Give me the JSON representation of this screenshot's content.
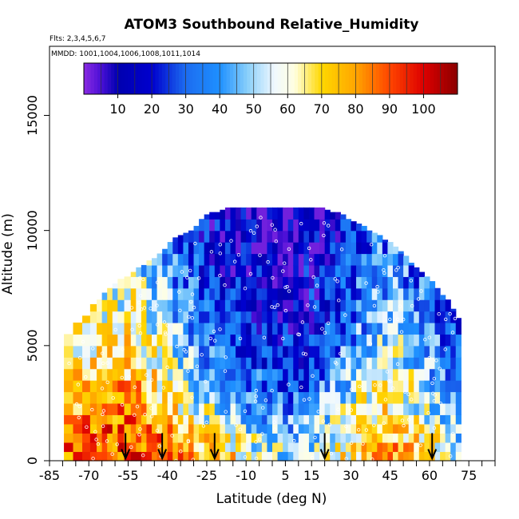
{
  "chart_data": {
    "type": "heatmap",
    "title": "ATOM3 Southbound Relative_Humidity",
    "flights_label": "Flts: 2,3,4,5,6,7",
    "dates_label": "MMDD: 1001,1004,1006,1008,1011,1014",
    "xlabel": "Latitude (deg N)",
    "ylabel": "Altitude (m)",
    "xlim": [
      -85,
      85
    ],
    "ylim": [
      0,
      18000
    ],
    "x_ticks": [
      -85,
      -70,
      -55,
      -40,
      -25,
      -10,
      5,
      15,
      30,
      45,
      60,
      75
    ],
    "x_minor_ticks": [
      -80,
      -75,
      -65,
      -60,
      -50,
      -45,
      -35,
      -30,
      -20,
      -15,
      -5,
      0,
      10,
      20,
      25,
      35,
      40,
      50,
      55,
      65,
      70,
      80,
      85
    ],
    "y_ticks": [
      0,
      5000,
      10000,
      15000
    ],
    "colorbar": {
      "range": [
        0,
        110
      ],
      "tick_values": [
        10,
        20,
        30,
        40,
        50,
        60,
        70,
        80,
        90,
        100
      ],
      "tick_labels": [
        "10",
        "20",
        "30",
        "40",
        "50",
        "60",
        "70",
        "80",
        "90",
        "100"
      ],
      "stops": [
        {
          "value": 0,
          "color": "#8a2be2"
        },
        {
          "value": 5,
          "color": "#4b0fd6"
        },
        {
          "value": 10,
          "color": "#0000b0"
        },
        {
          "value": 20,
          "color": "#0000cd"
        },
        {
          "value": 30,
          "color": "#1c6cf0"
        },
        {
          "value": 40,
          "color": "#1e90ff"
        },
        {
          "value": 48,
          "color": "#87cefa"
        },
        {
          "value": 56,
          "color": "#f0f8ff"
        },
        {
          "value": 62,
          "color": "#ffffe0"
        },
        {
          "value": 70,
          "color": "#ffd700"
        },
        {
          "value": 80,
          "color": "#ffa500"
        },
        {
          "value": 90,
          "color": "#ff4500"
        },
        {
          "value": 100,
          "color": "#dd0000"
        },
        {
          "value": 110,
          "color": "#8b0000"
        }
      ]
    },
    "profile_latitudes": [
      -78,
      -74,
      -71,
      -68,
      -66,
      -64,
      -62,
      -60,
      -58,
      -55,
      -53,
      -51,
      -49,
      -47,
      -45,
      -43,
      -41,
      -39,
      -37,
      -35,
      -33,
      -31,
      -29,
      -27,
      -25,
      -23,
      -21,
      -19,
      -17,
      -15,
      -13,
      -11,
      -9,
      -7,
      -5,
      -3,
      -1,
      1,
      3,
      5,
      7,
      9,
      11,
      13,
      15,
      17,
      19,
      21,
      23,
      25,
      27,
      29,
      31,
      33,
      35,
      37,
      39,
      41,
      43,
      45,
      47,
      49,
      51,
      53,
      55,
      57,
      59,
      61,
      63,
      65,
      67,
      69,
      71
    ],
    "profile_tops_m": [
      5500,
      6000,
      6300,
      6800,
      7000,
      7300,
      7500,
      7700,
      7900,
      8000,
      8200,
      8400,
      8500,
      8700,
      8800,
      9000,
      9200,
      9500,
      9700,
      9800,
      9900,
      10000,
      10200,
      10500,
      10700,
      10800,
      10800,
      10900,
      11000,
      11000,
      11100,
      11100,
      11100,
      11200,
      11200,
      11200,
      11200,
      11200,
      11200,
      11200,
      11200,
      11200,
      11100,
      11100,
      11100,
      11000,
      11000,
      10900,
      10800,
      10800,
      10700,
      10500,
      10400,
      10300,
      10200,
      10000,
      9900,
      9800,
      9600,
      9500,
      9300,
      9100,
      8900,
      8600,
      8400,
      8200,
      8000,
      7800,
      7500,
      7200,
      7000,
      6600,
      6200
    ],
    "altitude_bins_m": [
      0,
      400,
      800,
      1200,
      1600,
      2000,
      2500,
      3000,
      3500,
      4000,
      4500,
      5000,
      5500,
      6000,
      6500,
      7000,
      7500,
      8000,
      8500,
      9000,
      9500,
      10000,
      10500,
      11000
    ],
    "rh_percent": [
      [
        88,
        90,
        92,
        85,
        78,
        70,
        60,
        55,
        60,
        72,
        80,
        70,
        55
      ],
      [
        86,
        88,
        90,
        80,
        72,
        62,
        50,
        45,
        55,
        70,
        75,
        65,
        50
      ],
      [
        80,
        84,
        86,
        75,
        60,
        48,
        40,
        38,
        50,
        60,
        72,
        55,
        45
      ],
      [
        72,
        78,
        80,
        68,
        52,
        40,
        32,
        30,
        42,
        55,
        66,
        50,
        40
      ],
      [
        65,
        70,
        72,
        60,
        45,
        35,
        28,
        25,
        35,
        48,
        60,
        45,
        35
      ],
      [
        60,
        65,
        66,
        55,
        40,
        30,
        22,
        20,
        30,
        42,
        55,
        40,
        30
      ],
      [
        58,
        60,
        62,
        50,
        35,
        25,
        18,
        18,
        25,
        38,
        48,
        35,
        28
      ],
      [
        55,
        58,
        58,
        46,
        32,
        22,
        15,
        15,
        22,
        35,
        45,
        32,
        25
      ],
      [
        52,
        55,
        55,
        42,
        28,
        18,
        12,
        12,
        20,
        32,
        42,
        30,
        22
      ],
      [
        50,
        52,
        52,
        40,
        25,
        15,
        10,
        10,
        18,
        30,
        40,
        28,
        20
      ],
      [
        48,
        50,
        50,
        38,
        22,
        12,
        8,
        8,
        15,
        28,
        38,
        25,
        18
      ],
      [
        45,
        48,
        48,
        35,
        20,
        10,
        6,
        6,
        12,
        25,
        35,
        22,
        15
      ]
    ],
    "flight_markers_lat": [
      -56,
      -42,
      -22,
      20,
      61
    ],
    "n_profiles_per_row": 13
  }
}
